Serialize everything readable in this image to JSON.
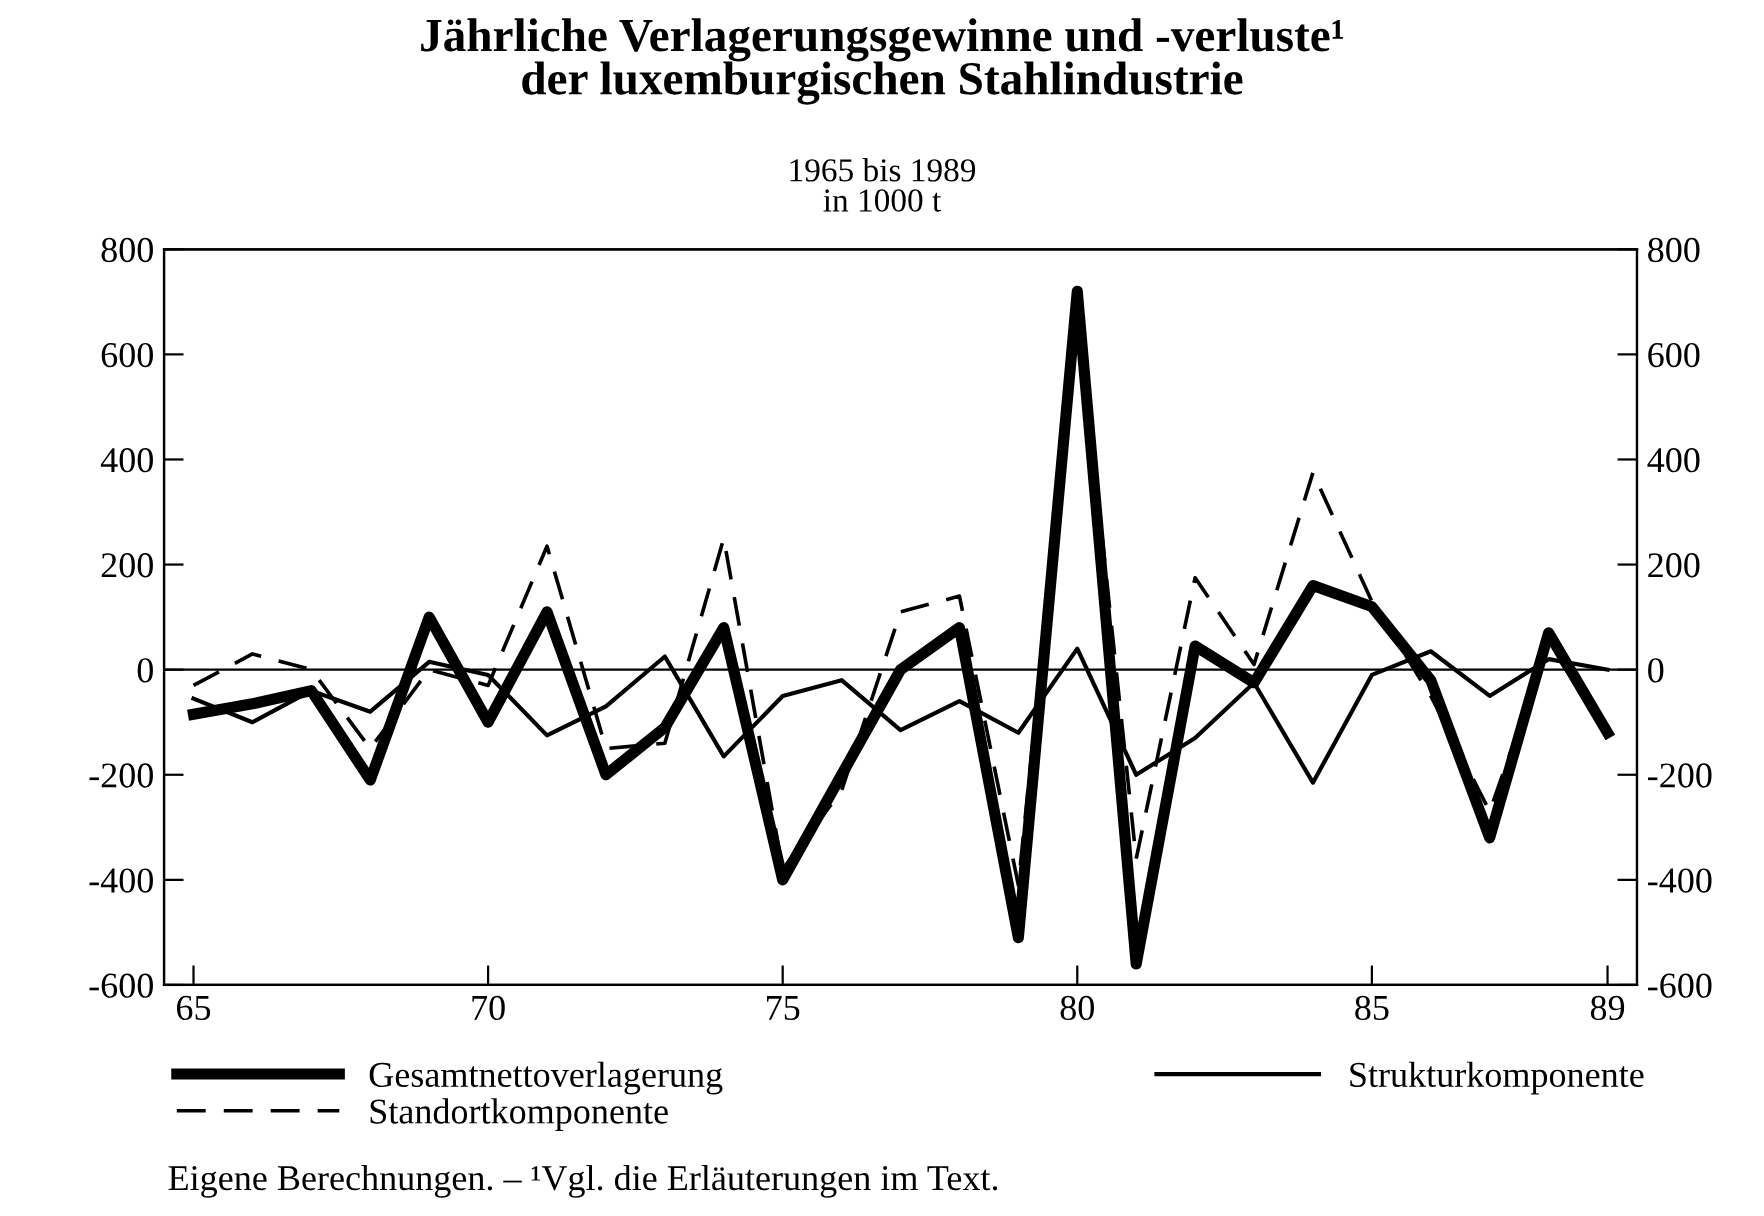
{
  "chart_data": {
    "type": "line",
    "title": "Jährliche Verlagerungsgewinne und -verluste¹\nder luxemburgischen Stahlindustrie",
    "subtitle": "1965 bis 1989\nin 1000 t",
    "x": [
      65,
      66,
      67,
      68,
      69,
      70,
      71,
      72,
      73,
      74,
      75,
      76,
      77,
      78,
      79,
      80,
      81,
      82,
      83,
      84,
      85,
      86,
      87,
      88,
      89
    ],
    "series": [
      {
        "name": "Gesamtnettoverlagerung",
        "color": "#000000",
        "line_style": "solid",
        "values": [
          -85,
          -65,
          -40,
          -210,
          100,
          -100,
          110,
          -200,
          -110,
          80,
          -400,
          -200,
          0,
          80,
          -510,
          720,
          -560,
          45,
          -25,
          160,
          120,
          -20,
          -320,
          70,
          -120
        ]
      },
      {
        "name": "Standortkomponente",
        "color": "#000000",
        "line_style": "dashed",
        "values": [
          -30,
          30,
          0,
          -150,
          0,
          -30,
          235,
          -150,
          -140,
          250,
          -380,
          -230,
          110,
          140,
          -410,
          700,
          -360,
          175,
          10,
          375,
          130,
          -50,
          -270,
          50,
          -120
        ]
      },
      {
        "name": "Strukturkomponente",
        "color": "#000000",
        "line_style": "solid",
        "values": [
          -55,
          -100,
          -40,
          -80,
          15,
          -10,
          -125,
          -70,
          25,
          -165,
          -50,
          -20,
          -115,
          -60,
          -120,
          40,
          -200,
          -130,
          -25,
          -215,
          -10,
          35,
          -50,
          20,
          0
        ]
      }
    ],
    "xlim": [
      64.5,
      89.5
    ],
    "xticks": [
      65,
      70,
      75,
      80,
      85,
      89
    ],
    "ylim": [
      -600,
      800
    ],
    "yticks": [
      -600,
      -400,
      -200,
      0,
      200,
      400,
      600,
      800
    ],
    "y2lim": [
      -600,
      800
    ],
    "y2ticks": [
      -600,
      -400,
      -200,
      0,
      200,
      400,
      600,
      800
    ],
    "ref_lines": [
      {
        "axis": "y",
        "value": 0,
        "label": null,
        "color": "#000000"
      }
    ],
    "grid": false,
    "legend": "bottom",
    "annotations": [
      "Eigene Berechnungen. – ¹Vgl. die Erläuterungen im Text."
    ]
  }
}
